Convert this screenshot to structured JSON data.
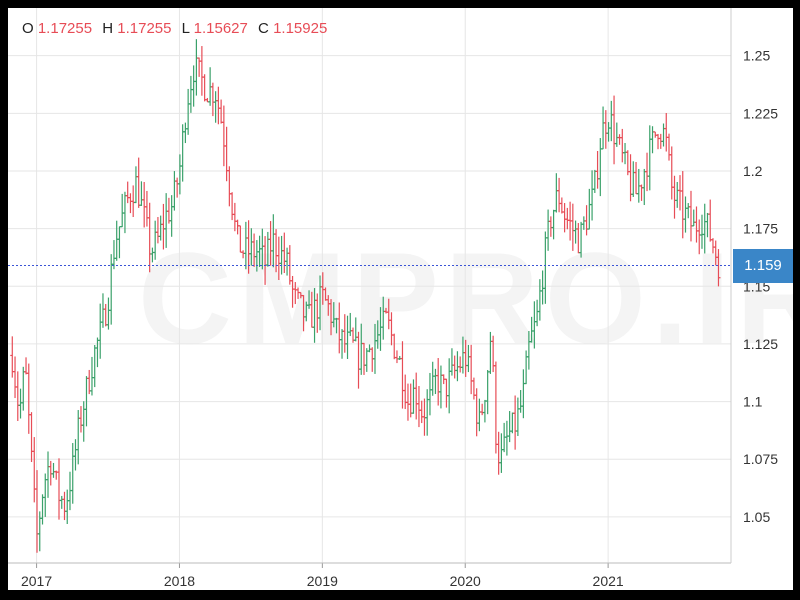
{
  "header": {
    "open_label": "O",
    "open_value": "1.17255",
    "high_label": "H",
    "high_value": "1.17255",
    "low_label": "L",
    "low_value": "1.15627",
    "close_label": "C",
    "close_value": "1.15925"
  },
  "watermark": "CMPRO.IR",
  "current_price_label": "1.159",
  "colors": {
    "up": "#3aa16a",
    "down": "#e74c56",
    "grid": "#e6e6e6",
    "current_line": "#3b54d6",
    "tag": "#3a86c8"
  },
  "chart_data": {
    "type": "ohlc",
    "title": "",
    "xlabel": "",
    "ylabel": "",
    "x_ticks": [
      "2017",
      "2018",
      "2019",
      "2020",
      "2021"
    ],
    "y_ticks": [
      "1.05",
      "1.075",
      "1.1",
      "1.125",
      "1.15",
      "1.175",
      "1.2",
      "1.225",
      "1.25"
    ],
    "ylim": [
      1.03,
      1.262
    ],
    "xlim": [
      2016.8,
      2021.86
    ],
    "grid": true,
    "current_price": 1.159,
    "trend": [
      [
        2016.83,
        1.12
      ],
      [
        2016.88,
        1.095
      ],
      [
        2016.92,
        1.115
      ],
      [
        2016.98,
        1.06
      ],
      [
        2017.0,
        1.04
      ],
      [
        2017.05,
        1.065
      ],
      [
        2017.1,
        1.075
      ],
      [
        2017.15,
        1.06
      ],
      [
        2017.2,
        1.055
      ],
      [
        2017.25,
        1.07
      ],
      [
        2017.3,
        1.09
      ],
      [
        2017.35,
        1.105
      ],
      [
        2017.4,
        1.12
      ],
      [
        2017.45,
        1.13
      ],
      [
        2017.5,
        1.145
      ],
      [
        2017.55,
        1.17
      ],
      [
        2017.6,
        1.18
      ],
      [
        2017.65,
        1.19
      ],
      [
        2017.7,
        1.195
      ],
      [
        2017.75,
        1.18
      ],
      [
        2017.8,
        1.165
      ],
      [
        2017.85,
        1.17
      ],
      [
        2017.9,
        1.18
      ],
      [
        2017.95,
        1.185
      ],
      [
        2018.0,
        1.2
      ],
      [
        2018.05,
        1.23
      ],
      [
        2018.1,
        1.245
      ],
      [
        2018.15,
        1.24
      ],
      [
        2018.2,
        1.235
      ],
      [
        2018.25,
        1.235
      ],
      [
        2018.3,
        1.22
      ],
      [
        2018.35,
        1.195
      ],
      [
        2018.4,
        1.17
      ],
      [
        2018.45,
        1.165
      ],
      [
        2018.5,
        1.165
      ],
      [
        2018.55,
        1.165
      ],
      [
        2018.6,
        1.16
      ],
      [
        2018.65,
        1.17
      ],
      [
        2018.7,
        1.165
      ],
      [
        2018.75,
        1.16
      ],
      [
        2018.8,
        1.145
      ],
      [
        2018.85,
        1.14
      ],
      [
        2018.9,
        1.135
      ],
      [
        2018.95,
        1.14
      ],
      [
        2019.0,
        1.145
      ],
      [
        2019.05,
        1.14
      ],
      [
        2019.1,
        1.13
      ],
      [
        2019.15,
        1.125
      ],
      [
        2019.2,
        1.125
      ],
      [
        2019.25,
        1.12
      ],
      [
        2019.3,
        1.12
      ],
      [
        2019.35,
        1.125
      ],
      [
        2019.4,
        1.13
      ],
      [
        2019.45,
        1.135
      ],
      [
        2019.5,
        1.125
      ],
      [
        2019.55,
        1.115
      ],
      [
        2019.6,
        1.1
      ],
      [
        2019.65,
        1.105
      ],
      [
        2019.7,
        1.095
      ],
      [
        2019.75,
        1.1
      ],
      [
        2019.8,
        1.11
      ],
      [
        2019.85,
        1.105
      ],
      [
        2019.9,
        1.11
      ],
      [
        2019.95,
        1.115
      ],
      [
        2020.0,
        1.12
      ],
      [
        2020.05,
        1.105
      ],
      [
        2020.1,
        1.09
      ],
      [
        2020.15,
        1.11
      ],
      [
        2020.18,
        1.13
      ],
      [
        2020.22,
        1.08
      ],
      [
        2020.25,
        1.075
      ],
      [
        2020.3,
        1.085
      ],
      [
        2020.35,
        1.09
      ],
      [
        2020.4,
        1.1
      ],
      [
        2020.45,
        1.125
      ],
      [
        2020.5,
        1.135
      ],
      [
        2020.55,
        1.16
      ],
      [
        2020.6,
        1.18
      ],
      [
        2020.65,
        1.19
      ],
      [
        2020.7,
        1.18
      ],
      [
        2020.75,
        1.175
      ],
      [
        2020.8,
        1.17
      ],
      [
        2020.85,
        1.18
      ],
      [
        2020.9,
        1.19
      ],
      [
        2020.95,
        1.215
      ],
      [
        2021.0,
        1.225
      ],
      [
        2021.05,
        1.215
      ],
      [
        2021.1,
        1.205
      ],
      [
        2021.15,
        1.195
      ],
      [
        2021.2,
        1.19
      ],
      [
        2021.25,
        1.2
      ],
      [
        2021.3,
        1.21
      ],
      [
        2021.35,
        1.22
      ],
      [
        2021.4,
        1.215
      ],
      [
        2021.45,
        1.19
      ],
      [
        2021.5,
        1.185
      ],
      [
        2021.55,
        1.18
      ],
      [
        2021.6,
        1.175
      ],
      [
        2021.65,
        1.18
      ],
      [
        2021.7,
        1.175
      ],
      [
        2021.75,
        1.165
      ],
      [
        2021.78,
        1.159
      ]
    ]
  }
}
